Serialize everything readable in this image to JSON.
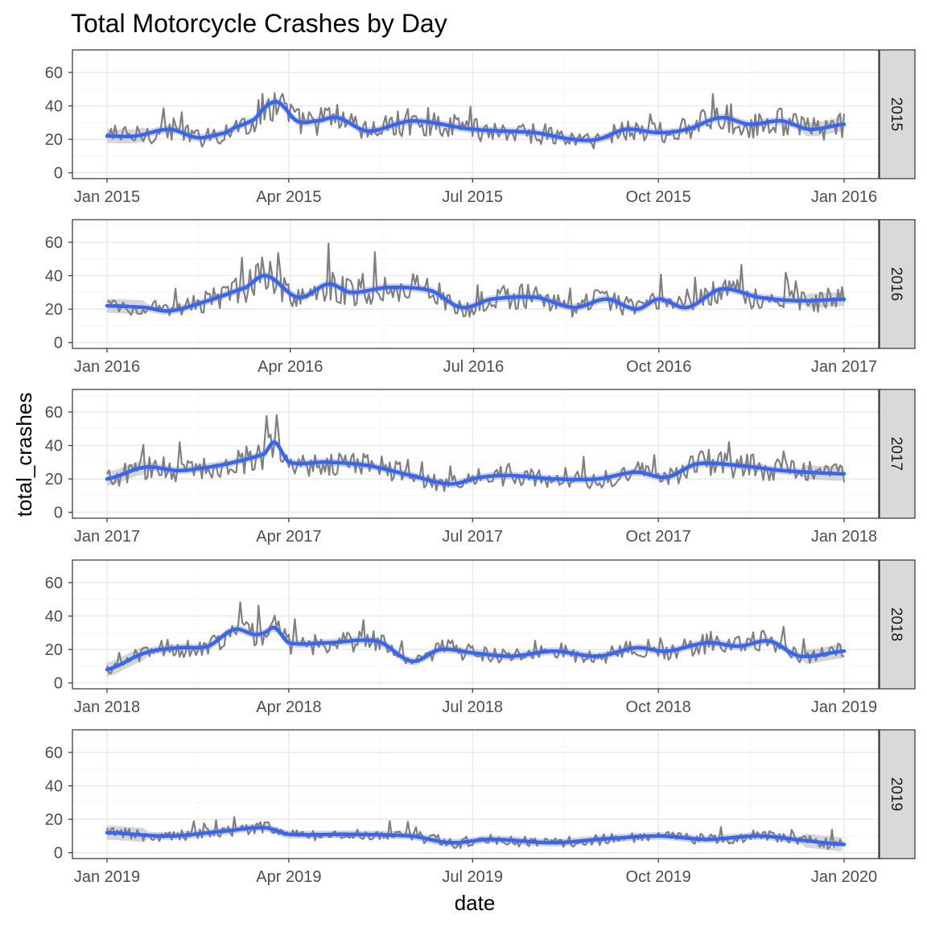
{
  "chart_data": {
    "type": "line",
    "title": "Total Motorcycle Crashes by Day",
    "xlabel": "date",
    "ylabel": "total_crashes",
    "ylim": [
      0,
      70
    ],
    "yticks": [
      0,
      20,
      40,
      60
    ],
    "grid": true,
    "facet": "rows by year",
    "colors": {
      "raw": "#7f7f7f",
      "smooth": "#3366ff",
      "ribbon": "#c8c8c8"
    },
    "panels": [
      {
        "strip": "2015",
        "xlim": [
          "2015-01-01",
          "2016-01-01"
        ],
        "xticks": [
          {
            "label": "Jan 2015",
            "date": "2015-01-01"
          },
          {
            "label": "Apr 2015",
            "date": "2015-04-01"
          },
          {
            "label": "Jul 2015",
            "date": "2015-07-01"
          },
          {
            "label": "Oct 2015",
            "date": "2015-10-01"
          },
          {
            "label": "Jan 2016",
            "date": "2016-01-01"
          }
        ],
        "smooth": [
          {
            "date": "2015-01-01",
            "y": 22
          },
          {
            "date": "2015-01-15",
            "y": 22
          },
          {
            "date": "2015-02-01",
            "y": 26
          },
          {
            "date": "2015-02-15",
            "y": 21
          },
          {
            "date": "2015-03-01",
            "y": 24
          },
          {
            "date": "2015-03-15",
            "y": 32
          },
          {
            "date": "2015-03-05",
            "y": 27
          },
          {
            "date": "2015-03-21",
            "y": 40
          },
          {
            "date": "2015-03-27",
            "y": 42
          },
          {
            "date": "2015-04-05",
            "y": 31
          },
          {
            "date": "2015-04-15",
            "y": 31
          },
          {
            "date": "2015-04-25",
            "y": 33
          },
          {
            "date": "2015-05-10",
            "y": 25
          },
          {
            "date": "2015-06-01",
            "y": 31
          },
          {
            "date": "2015-07-01",
            "y": 26
          },
          {
            "date": "2015-08-01",
            "y": 24
          },
          {
            "date": "2015-08-20",
            "y": 20
          },
          {
            "date": "2015-09-01",
            "y": 20
          },
          {
            "date": "2015-09-15",
            "y": 26
          },
          {
            "date": "2015-10-01",
            "y": 24
          },
          {
            "date": "2015-10-15",
            "y": 26
          },
          {
            "date": "2015-11-01",
            "y": 33
          },
          {
            "date": "2015-11-15",
            "y": 29
          },
          {
            "date": "2015-12-01",
            "y": 31
          },
          {
            "date": "2015-12-15",
            "y": 26
          },
          {
            "date": "2016-01-01",
            "y": 29
          }
        ]
      },
      {
        "strip": "2016",
        "xlim": [
          "2016-01-01",
          "2017-01-01"
        ],
        "xticks": [
          {
            "label": "Jan 2016",
            "date": "2016-01-01"
          },
          {
            "label": "Apr 2016",
            "date": "2016-04-01"
          },
          {
            "label": "Jul 2016",
            "date": "2016-07-01"
          },
          {
            "label": "Oct 2016",
            "date": "2016-10-01"
          },
          {
            "label": "Jan 2017",
            "date": "2017-01-01"
          }
        ],
        "smooth": [
          {
            "date": "2016-01-01",
            "y": 22
          },
          {
            "date": "2016-01-20",
            "y": 21
          },
          {
            "date": "2016-02-01",
            "y": 19
          },
          {
            "date": "2016-02-20",
            "y": 25
          },
          {
            "date": "2016-03-10",
            "y": 33
          },
          {
            "date": "2016-03-20",
            "y": 40
          },
          {
            "date": "2016-04-05",
            "y": 27
          },
          {
            "date": "2016-04-20",
            "y": 35
          },
          {
            "date": "2016-05-01",
            "y": 30
          },
          {
            "date": "2016-05-20",
            "y": 33
          },
          {
            "date": "2016-06-10",
            "y": 31
          },
          {
            "date": "2016-06-25",
            "y": 21
          },
          {
            "date": "2016-07-10",
            "y": 26
          },
          {
            "date": "2016-08-01",
            "y": 27
          },
          {
            "date": "2016-08-20",
            "y": 21
          },
          {
            "date": "2016-09-05",
            "y": 26
          },
          {
            "date": "2016-09-20",
            "y": 20
          },
          {
            "date": "2016-10-01",
            "y": 26
          },
          {
            "date": "2016-10-15",
            "y": 21
          },
          {
            "date": "2016-11-01",
            "y": 32
          },
          {
            "date": "2016-11-20",
            "y": 27
          },
          {
            "date": "2016-12-10",
            "y": 25
          },
          {
            "date": "2017-01-01",
            "y": 26
          }
        ]
      },
      {
        "strip": "2017",
        "xlim": [
          "2017-01-01",
          "2018-01-01"
        ],
        "xticks": [
          {
            "label": "Jan 2017",
            "date": "2017-01-01"
          },
          {
            "label": "Apr 2017",
            "date": "2017-04-01"
          },
          {
            "label": "Jul 2017",
            "date": "2017-07-01"
          },
          {
            "label": "Oct 2017",
            "date": "2017-10-01"
          },
          {
            "label": "Jan 2018",
            "date": "2018-01-01"
          }
        ],
        "smooth": [
          {
            "date": "2017-01-01",
            "y": 20
          },
          {
            "date": "2017-01-20",
            "y": 27
          },
          {
            "date": "2017-02-05",
            "y": 25
          },
          {
            "date": "2017-02-20",
            "y": 27
          },
          {
            "date": "2017-03-05",
            "y": 30
          },
          {
            "date": "2017-03-20",
            "y": 35
          },
          {
            "date": "2017-03-25",
            "y": 42
          },
          {
            "date": "2017-04-01",
            "y": 30
          },
          {
            "date": "2017-04-20",
            "y": 30
          },
          {
            "date": "2017-05-10",
            "y": 28
          },
          {
            "date": "2017-06-01",
            "y": 22
          },
          {
            "date": "2017-06-20",
            "y": 17
          },
          {
            "date": "2017-07-05",
            "y": 21
          },
          {
            "date": "2017-07-20",
            "y": 22
          },
          {
            "date": "2017-08-10",
            "y": 20
          },
          {
            "date": "2017-09-01",
            "y": 20
          },
          {
            "date": "2017-09-20",
            "y": 24
          },
          {
            "date": "2017-10-05",
            "y": 21
          },
          {
            "date": "2017-10-20",
            "y": 29
          },
          {
            "date": "2017-11-10",
            "y": 28
          },
          {
            "date": "2017-12-01",
            "y": 25
          },
          {
            "date": "2018-01-01",
            "y": 23
          }
        ]
      },
      {
        "strip": "2018",
        "xlim": [
          "2018-01-01",
          "2019-01-01"
        ],
        "xticks": [
          {
            "label": "Jan 2018",
            "date": "2018-01-01"
          },
          {
            "label": "Apr 2018",
            "date": "2018-04-01"
          },
          {
            "label": "Jul 2018",
            "date": "2018-07-01"
          },
          {
            "label": "Oct 2018",
            "date": "2018-10-01"
          },
          {
            "label": "Jan 2019",
            "date": "2019-01-01"
          }
        ],
        "smooth": [
          {
            "date": "2018-01-01",
            "y": 8
          },
          {
            "date": "2018-01-20",
            "y": 18
          },
          {
            "date": "2018-02-05",
            "y": 21
          },
          {
            "date": "2018-02-20",
            "y": 22
          },
          {
            "date": "2018-03-05",
            "y": 32
          },
          {
            "date": "2018-03-15",
            "y": 29
          },
          {
            "date": "2018-03-20",
            "y": 30
          },
          {
            "date": "2018-03-25",
            "y": 33
          },
          {
            "date": "2018-04-01",
            "y": 24
          },
          {
            "date": "2018-04-20",
            "y": 24
          },
          {
            "date": "2018-05-15",
            "y": 25
          },
          {
            "date": "2018-06-01",
            "y": 13
          },
          {
            "date": "2018-06-15",
            "y": 20
          },
          {
            "date": "2018-07-01",
            "y": 18
          },
          {
            "date": "2018-07-20",
            "y": 16
          },
          {
            "date": "2018-08-10",
            "y": 19
          },
          {
            "date": "2018-09-01",
            "y": 16
          },
          {
            "date": "2018-09-20",
            "y": 21
          },
          {
            "date": "2018-10-05",
            "y": 19
          },
          {
            "date": "2018-10-25",
            "y": 24
          },
          {
            "date": "2018-11-10",
            "y": 22
          },
          {
            "date": "2018-11-25",
            "y": 25
          },
          {
            "date": "2018-12-10",
            "y": 16
          },
          {
            "date": "2019-01-01",
            "y": 19
          }
        ]
      },
      {
        "strip": "2019",
        "xlim": [
          "2019-01-01",
          "2020-01-01"
        ],
        "xticks": [
          {
            "label": "Jan 2019",
            "date": "2019-01-01"
          },
          {
            "label": "Apr 2019",
            "date": "2019-04-01"
          },
          {
            "label": "Jul 2019",
            "date": "2019-07-01"
          },
          {
            "label": "Oct 2019",
            "date": "2019-10-01"
          },
          {
            "label": "Jan 2020",
            "date": "2020-01-01"
          }
        ],
        "smooth": [
          {
            "date": "2019-01-01",
            "y": 12
          },
          {
            "date": "2019-02-01",
            "y": 10
          },
          {
            "date": "2019-03-01",
            "y": 13
          },
          {
            "date": "2019-03-20",
            "y": 15
          },
          {
            "date": "2019-04-01",
            "y": 11
          },
          {
            "date": "2019-05-01",
            "y": 11
          },
          {
            "date": "2019-06-01",
            "y": 10
          },
          {
            "date": "2019-06-20",
            "y": 6
          },
          {
            "date": "2019-07-10",
            "y": 8
          },
          {
            "date": "2019-08-10",
            "y": 6
          },
          {
            "date": "2019-09-01",
            "y": 8
          },
          {
            "date": "2019-10-01",
            "y": 10
          },
          {
            "date": "2019-10-25",
            "y": 8
          },
          {
            "date": "2019-11-20",
            "y": 10
          },
          {
            "date": "2019-12-15",
            "y": 7
          },
          {
            "date": "2020-01-01",
            "y": 5
          }
        ]
      }
    ]
  }
}
